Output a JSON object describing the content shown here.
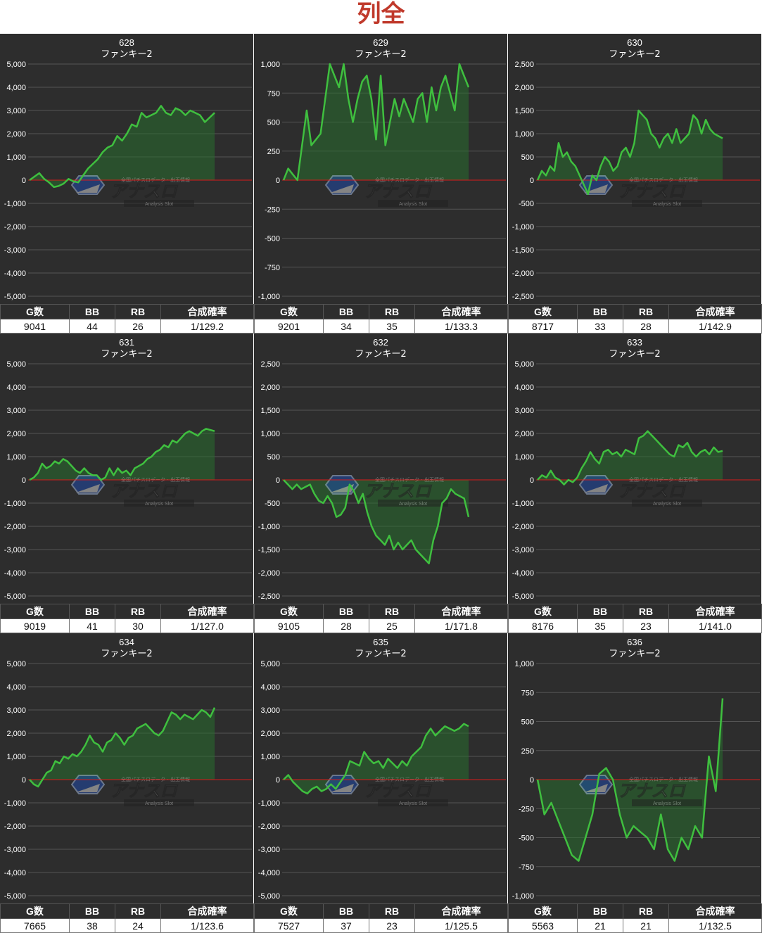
{
  "page_title": "列全",
  "colors": {
    "background": "#2d2d2d",
    "line": "#3fbf3f",
    "zero_line": "#d81b1b",
    "grid": "#555555",
    "title": "#c0392b",
    "fill": "rgba(40,110,45,0.55)"
  },
  "watermark": {
    "icon": "analysis-slot-logo-icon",
    "tagline": "全国パチスロデータ・出玉情報",
    "brand": "アナスロ",
    "sub": "Analysis Slot"
  },
  "stats_headers": [
    "G数",
    "BB",
    "RB",
    "合成確率"
  ],
  "chart_data": [
    {
      "type": "line",
      "title": "628",
      "subtitle": "ファンキー2",
      "yticks": [
        "5,000",
        "4,000",
        "3,000",
        "2,000",
        "1,000",
        "0",
        "-1,000",
        "-2,000",
        "-3,000",
        "-4,000",
        "-5,000"
      ],
      "ylim": [
        -5000,
        5000
      ],
      "values": [
        0,
        150,
        300,
        50,
        -100,
        -300,
        -250,
        -150,
        50,
        -50,
        -100,
        200,
        500,
        700,
        900,
        1200,
        1400,
        1500,
        1900,
        1700,
        2000,
        2400,
        2300,
        2900,
        2700,
        2800,
        2900,
        3200,
        2900,
        2800,
        3100,
        3000,
        2800,
        3000,
        2900,
        2800,
        2500,
        2700,
        2900
      ],
      "stats": {
        "g": "9041",
        "bb": "44",
        "rb": "26",
        "prob": "1/129.2"
      }
    },
    {
      "type": "line",
      "title": "629",
      "subtitle": "ファンキー2",
      "yticks": [
        "1,000",
        "750",
        "500",
        "250",
        "0",
        "-250",
        "-500",
        "-750",
        "-1,000"
      ],
      "ylim": [
        -1000,
        1000
      ],
      "values": [
        0,
        100,
        50,
        0,
        300,
        600,
        300,
        350,
        400,
        700,
        1000,
        900,
        800,
        1000,
        700,
        500,
        700,
        850,
        900,
        700,
        350,
        900,
        300,
        500,
        700,
        550,
        700,
        600,
        500,
        700,
        750,
        500,
        800,
        600,
        800,
        900,
        750,
        600,
        1000,
        900,
        800
      ],
      "stats": {
        "g": "9201",
        "bb": "34",
        "rb": "35",
        "prob": "1/133.3"
      }
    },
    {
      "type": "line",
      "title": "630",
      "subtitle": "ファンキー2",
      "yticks": [
        "2,500",
        "2,000",
        "1,500",
        "1,000",
        "500",
        "0",
        "-500",
        "-1,000",
        "-1,500",
        "-2,000",
        "-2,500"
      ],
      "ylim": [
        -2500,
        2500
      ],
      "values": [
        0,
        200,
        100,
        300,
        200,
        800,
        500,
        600,
        400,
        300,
        100,
        -100,
        -300,
        100,
        0,
        300,
        500,
        400,
        200,
        300,
        600,
        700,
        500,
        800,
        1500,
        1400,
        1300,
        1000,
        900,
        700,
        900,
        1000,
        800,
        1100,
        800,
        900,
        1000,
        1400,
        1300,
        1000,
        1300,
        1100,
        1000,
        950,
        900
      ],
      "stats": {
        "g": "8717",
        "bb": "33",
        "rb": "28",
        "prob": "1/142.9"
      }
    },
    {
      "type": "line",
      "title": "631",
      "subtitle": "ファンキー2",
      "yticks": [
        "5,000",
        "4,000",
        "3,000",
        "2,000",
        "1,000",
        "0",
        "-1,000",
        "-2,000",
        "-3,000",
        "-4,000",
        "-5,000"
      ],
      "ylim": [
        -5000,
        5000
      ],
      "values": [
        0,
        100,
        300,
        700,
        500,
        600,
        800,
        700,
        900,
        800,
        600,
        400,
        300,
        500,
        300,
        200,
        200,
        0,
        100,
        500,
        200,
        500,
        300,
        400,
        200,
        500,
        600,
        700,
        900,
        1000,
        1200,
        1300,
        1500,
        1400,
        1700,
        1600,
        1800,
        2000,
        2100,
        2000,
        1900,
        2100,
        2200,
        2150,
        2100
      ],
      "stats": {
        "g": "9019",
        "bb": "41",
        "rb": "30",
        "prob": "1/127.0"
      }
    },
    {
      "type": "line",
      "title": "632",
      "subtitle": "ファンキー2",
      "yticks": [
        "2,500",
        "2,000",
        "1,500",
        "1,000",
        "500",
        "0",
        "-500",
        "-1,000",
        "-1,500",
        "-2,000",
        "-2,500"
      ],
      "ylim": [
        -2500,
        2500
      ],
      "values": [
        0,
        -100,
        -200,
        -100,
        -200,
        -150,
        -100,
        -300,
        -450,
        -500,
        -350,
        -500,
        -800,
        -750,
        -600,
        -100,
        -250,
        -500,
        -300,
        -700,
        -1000,
        -1200,
        -1300,
        -1400,
        -1200,
        -1500,
        -1350,
        -1500,
        -1400,
        -1300,
        -1500,
        -1600,
        -1700,
        -1800,
        -1300,
        -1000,
        -500,
        -400,
        -200,
        -300,
        -350,
        -400,
        -800
      ],
      "stats": {
        "g": "9105",
        "bb": "28",
        "rb": "25",
        "prob": "1/171.8"
      }
    },
    {
      "type": "line",
      "title": "633",
      "subtitle": "ファンキー2",
      "yticks": [
        "5,000",
        "4,000",
        "3,000",
        "2,000",
        "1,000",
        "0",
        "-1,000",
        "-2,000",
        "-3,000",
        "-4,000",
        "-5,000"
      ],
      "ylim": [
        -5000,
        5000
      ],
      "values": [
        0,
        200,
        100,
        400,
        100,
        0,
        -200,
        0,
        -100,
        100,
        500,
        800,
        1200,
        900,
        700,
        1200,
        1300,
        1100,
        1200,
        1000,
        1300,
        1200,
        1100,
        1800,
        1900,
        2100,
        1900,
        1700,
        1500,
        1300,
        1100,
        1000,
        1500,
        1400,
        1600,
        1200,
        1000,
        1200,
        1300,
        1100,
        1400,
        1200,
        1250
      ],
      "stats": {
        "g": "8176",
        "bb": "35",
        "rb": "23",
        "prob": "1/141.0"
      }
    },
    {
      "type": "line",
      "title": "634",
      "subtitle": "ファンキー2",
      "yticks": [
        "5,000",
        "4,000",
        "3,000",
        "2,000",
        "1,000",
        "0",
        "-1,000",
        "-2,000",
        "-3,000",
        "-4,000",
        "-5,000"
      ],
      "ylim": [
        -5000,
        5000
      ],
      "values": [
        0,
        -200,
        -300,
        0,
        300,
        400,
        800,
        700,
        1000,
        900,
        1100,
        1000,
        1200,
        1500,
        1900,
        1600,
        1500,
        1200,
        1600,
        1700,
        2000,
        1800,
        1500,
        1800,
        1900,
        2200,
        2300,
        2400,
        2200,
        2000,
        1900,
        2100,
        2500,
        2900,
        2800,
        2600,
        2800,
        2700,
        2600,
        2800,
        3000,
        2900,
        2700,
        3100
      ],
      "stats": {
        "g": "7665",
        "bb": "38",
        "rb": "24",
        "prob": "1/123.6"
      }
    },
    {
      "type": "line",
      "title": "635",
      "subtitle": "ファンキー2",
      "yticks": [
        "5,000",
        "4,000",
        "3,000",
        "2,000",
        "1,000",
        "0",
        "-1,000",
        "-2,000",
        "-3,000",
        "-4,000",
        "-5,000"
      ],
      "ylim": [
        -5000,
        5000
      ],
      "values": [
        0,
        200,
        -100,
        -300,
        -500,
        -600,
        -400,
        -300,
        -500,
        -400,
        -200,
        -400,
        -100,
        200,
        800,
        700,
        600,
        1200,
        900,
        700,
        800,
        500,
        900,
        700,
        500,
        800,
        600,
        1000,
        1200,
        1400,
        1900,
        2200,
        1900,
        2100,
        2300,
        2200,
        2100,
        2200,
        2400,
        2300
      ],
      "stats": {
        "g": "7527",
        "bb": "37",
        "rb": "23",
        "prob": "1/125.5"
      }
    },
    {
      "type": "line",
      "title": "636",
      "subtitle": "ファンキー2",
      "yticks": [
        "1,000",
        "750",
        "500",
        "250",
        "0",
        "-250",
        "-500",
        "-750",
        "-1,000"
      ],
      "ylim": [
        -1000,
        1000
      ],
      "values": [
        0,
        -300,
        -200,
        -350,
        -500,
        -650,
        -700,
        -500,
        -300,
        50,
        100,
        0,
        -300,
        -500,
        -400,
        -450,
        -500,
        -600,
        -300,
        -600,
        -700,
        -500,
        -600,
        -400,
        -500,
        200,
        -100,
        700
      ],
      "stats": {
        "g": "5563",
        "bb": "21",
        "rb": "21",
        "prob": "1/132.5"
      }
    }
  ]
}
